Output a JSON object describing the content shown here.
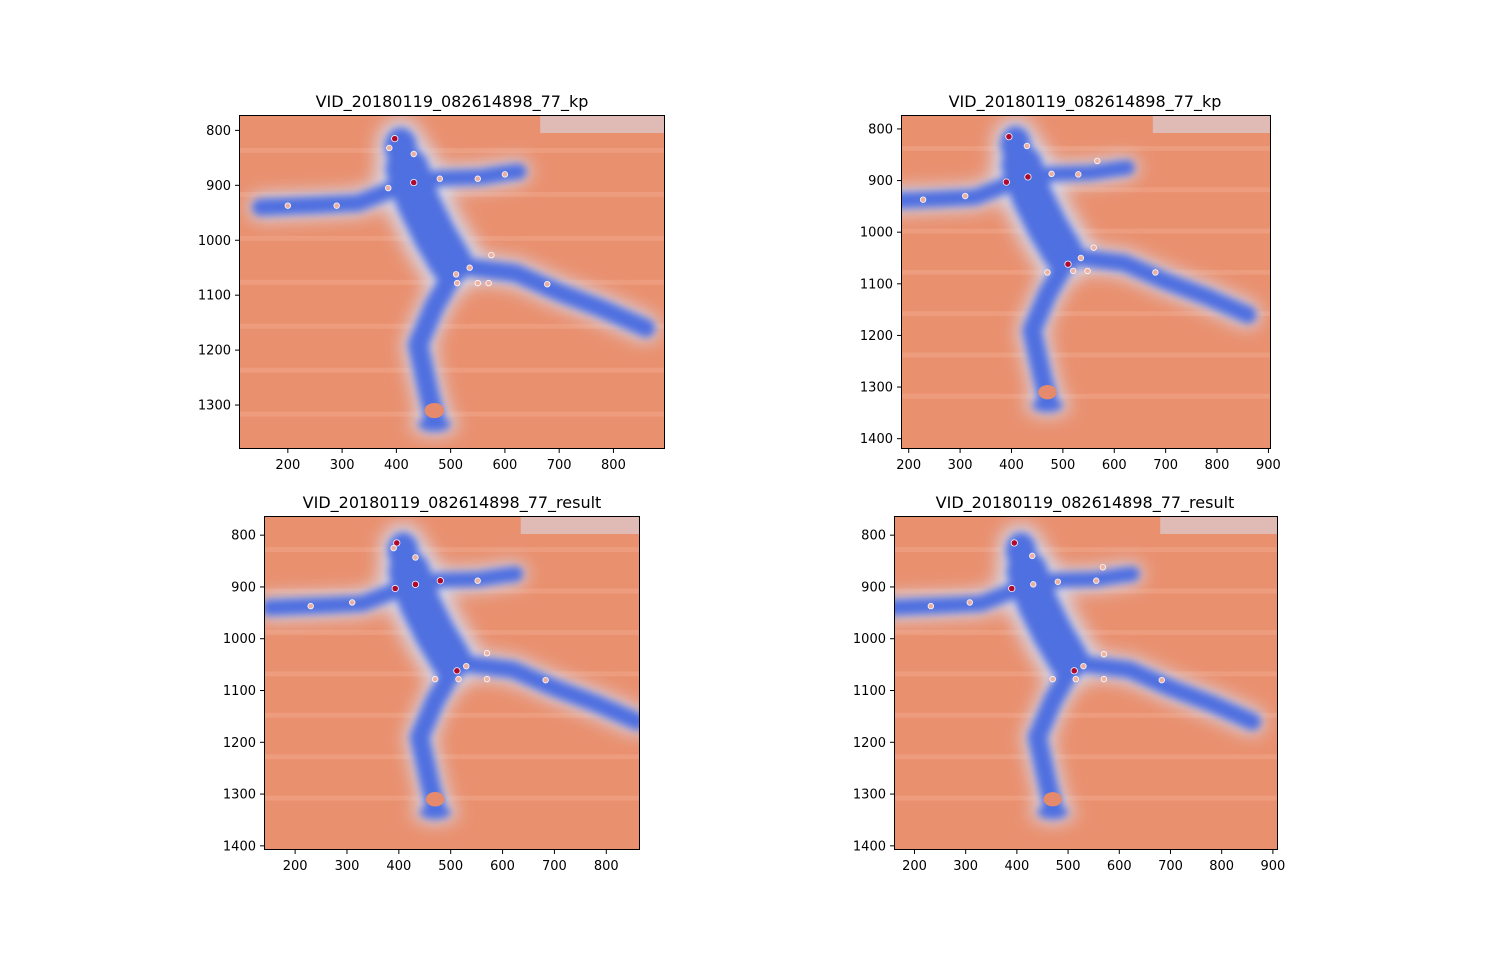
{
  "colors": {
    "background": "#e9906f",
    "body": "#4f6fe0",
    "body_dark": "#3a56c8",
    "halo": "#d8dcef",
    "keypoint_low": "#f3b3a0",
    "keypoint_high": "#b40426"
  },
  "chart_data": [
    {
      "type": "heatmap",
      "title": "VID_20180119_082614898_77_kp",
      "colormap": "coolwarm",
      "xlim": [
        110,
        895
      ],
      "ylim": [
        1380,
        772
      ],
      "xticks": [
        200,
        300,
        400,
        500,
        600,
        700,
        800
      ],
      "yticks": [
        800,
        900,
        1000,
        1100,
        1200,
        1300
      ],
      "keypoints": [
        {
          "x": 397,
          "y": 815,
          "strength": "high"
        },
        {
          "x": 387,
          "y": 832,
          "strength": "low"
        },
        {
          "x": 432,
          "y": 843,
          "strength": "low"
        },
        {
          "x": 432,
          "y": 895,
          "strength": "high"
        },
        {
          "x": 385,
          "y": 905,
          "strength": "low"
        },
        {
          "x": 480,
          "y": 888,
          "strength": "low"
        },
        {
          "x": 550,
          "y": 888,
          "strength": "low"
        },
        {
          "x": 600,
          "y": 880,
          "strength": "low"
        },
        {
          "x": 290,
          "y": 937,
          "strength": "low"
        },
        {
          "x": 200,
          "y": 937,
          "strength": "low"
        },
        {
          "x": 510,
          "y": 1062,
          "strength": "low"
        },
        {
          "x": 535,
          "y": 1050,
          "strength": "low"
        },
        {
          "x": 575,
          "y": 1027,
          "strength": "low"
        },
        {
          "x": 512,
          "y": 1078,
          "strength": "low"
        },
        {
          "x": 550,
          "y": 1078,
          "strength": "low"
        },
        {
          "x": 570,
          "y": 1078,
          "strength": "low"
        },
        {
          "x": 678,
          "y": 1080,
          "strength": "low"
        }
      ]
    },
    {
      "type": "heatmap",
      "title": "VID_20180119_082614898_77_kp",
      "colormap": "coolwarm",
      "xlim": [
        185,
        905
      ],
      "ylim": [
        1420,
        773
      ],
      "xticks": [
        200,
        300,
        400,
        500,
        600,
        700,
        800,
        900
      ],
      "yticks": [
        800,
        900,
        1000,
        1100,
        1200,
        1300,
        1400
      ],
      "keypoints": [
        {
          "x": 395,
          "y": 815,
          "strength": "high"
        },
        {
          "x": 430,
          "y": 833,
          "strength": "low"
        },
        {
          "x": 390,
          "y": 903,
          "strength": "high"
        },
        {
          "x": 432,
          "y": 893,
          "strength": "high"
        },
        {
          "x": 478,
          "y": 887,
          "strength": "low"
        },
        {
          "x": 530,
          "y": 888,
          "strength": "low"
        },
        {
          "x": 567,
          "y": 862,
          "strength": "low"
        },
        {
          "x": 310,
          "y": 930,
          "strength": "low"
        },
        {
          "x": 228,
          "y": 937,
          "strength": "low"
        },
        {
          "x": 510,
          "y": 1062,
          "strength": "high"
        },
        {
          "x": 535,
          "y": 1050,
          "strength": "low"
        },
        {
          "x": 560,
          "y": 1030,
          "strength": "low"
        },
        {
          "x": 520,
          "y": 1075,
          "strength": "low"
        },
        {
          "x": 548,
          "y": 1075,
          "strength": "low"
        },
        {
          "x": 680,
          "y": 1078,
          "strength": "low"
        },
        {
          "x": 470,
          "y": 1078,
          "strength": "low"
        }
      ]
    },
    {
      "type": "heatmap",
      "title": "VID_20180119_082614898_77_result",
      "colormap": "coolwarm",
      "xlim": [
        140,
        865
      ],
      "ylim": [
        1408,
        763
      ],
      "xticks": [
        200,
        300,
        400,
        500,
        600,
        700,
        800
      ],
      "yticks": [
        800,
        900,
        1000,
        1100,
        1200,
        1300,
        1400
      ],
      "keypoints": [
        {
          "x": 396,
          "y": 815,
          "strength": "high"
        },
        {
          "x": 390,
          "y": 825,
          "strength": "low"
        },
        {
          "x": 432,
          "y": 843,
          "strength": "low"
        },
        {
          "x": 393,
          "y": 903,
          "strength": "high"
        },
        {
          "x": 432,
          "y": 895,
          "strength": "high"
        },
        {
          "x": 480,
          "y": 888,
          "strength": "high"
        },
        {
          "x": 552,
          "y": 888,
          "strength": "low"
        },
        {
          "x": 310,
          "y": 930,
          "strength": "low"
        },
        {
          "x": 230,
          "y": 937,
          "strength": "low"
        },
        {
          "x": 512,
          "y": 1062,
          "strength": "high"
        },
        {
          "x": 530,
          "y": 1053,
          "strength": "low"
        },
        {
          "x": 570,
          "y": 1028,
          "strength": "low"
        },
        {
          "x": 515,
          "y": 1078,
          "strength": "low"
        },
        {
          "x": 570,
          "y": 1078,
          "strength": "low"
        },
        {
          "x": 470,
          "y": 1078,
          "strength": "low"
        },
        {
          "x": 683,
          "y": 1080,
          "strength": "low"
        }
      ]
    },
    {
      "type": "heatmap",
      "title": "VID_20180119_082614898_77_result",
      "colormap": "coolwarm",
      "xlim": [
        160,
        910
      ],
      "ylim": [
        1408,
        763
      ],
      "xticks": [
        200,
        300,
        400,
        500,
        600,
        700,
        800,
        900
      ],
      "yticks": [
        800,
        900,
        1000,
        1100,
        1200,
        1300,
        1400
      ],
      "keypoints": [
        {
          "x": 395,
          "y": 815,
          "strength": "high"
        },
        {
          "x": 430,
          "y": 840,
          "strength": "low"
        },
        {
          "x": 390,
          "y": 903,
          "strength": "high"
        },
        {
          "x": 432,
          "y": 895,
          "strength": "low"
        },
        {
          "x": 480,
          "y": 890,
          "strength": "low"
        },
        {
          "x": 555,
          "y": 888,
          "strength": "low"
        },
        {
          "x": 568,
          "y": 862,
          "strength": "low"
        },
        {
          "x": 308,
          "y": 930,
          "strength": "low"
        },
        {
          "x": 232,
          "y": 937,
          "strength": "low"
        },
        {
          "x": 512,
          "y": 1062,
          "strength": "high"
        },
        {
          "x": 530,
          "y": 1053,
          "strength": "low"
        },
        {
          "x": 570,
          "y": 1030,
          "strength": "low"
        },
        {
          "x": 515,
          "y": 1078,
          "strength": "low"
        },
        {
          "x": 570,
          "y": 1078,
          "strength": "low"
        },
        {
          "x": 470,
          "y": 1078,
          "strength": "low"
        },
        {
          "x": 683,
          "y": 1080,
          "strength": "low"
        }
      ]
    }
  ]
}
